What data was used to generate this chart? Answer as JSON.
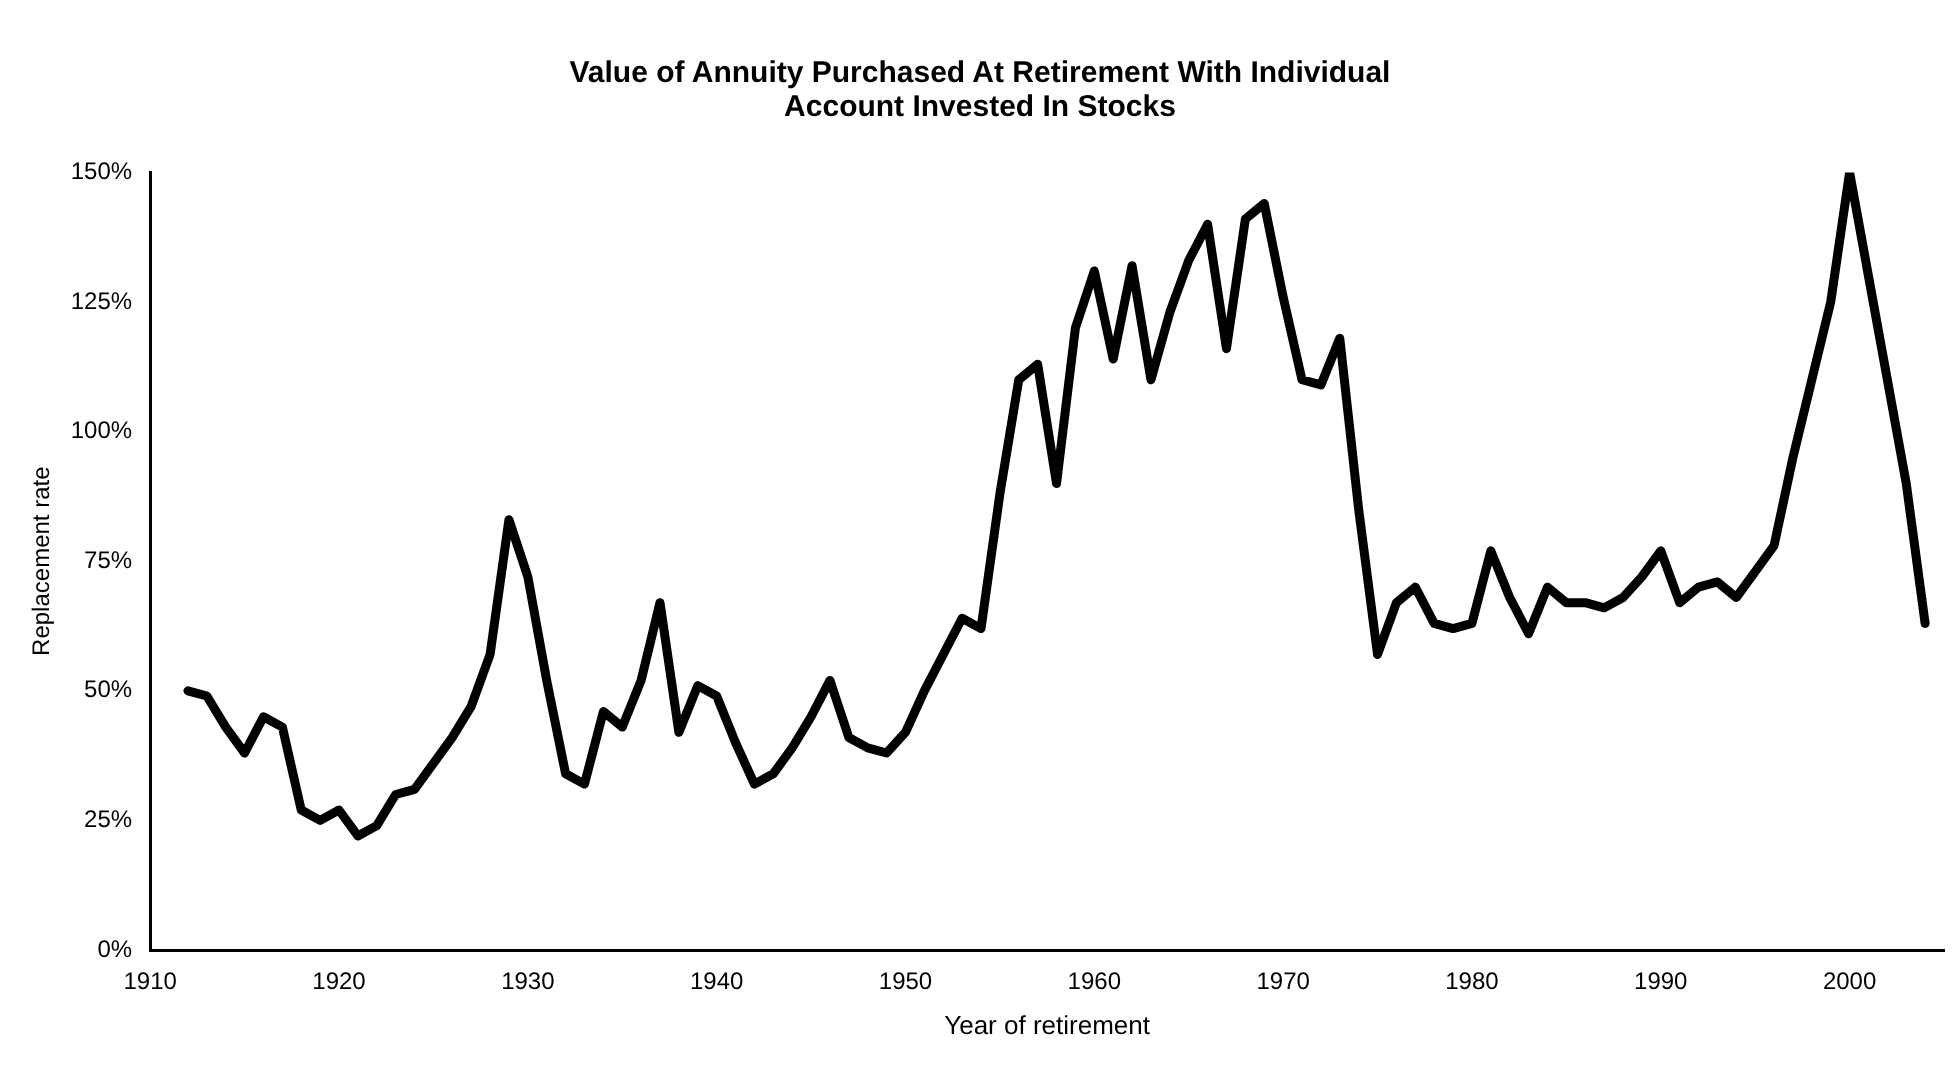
{
  "chart_data": {
    "type": "line",
    "title": "Value of Annuity Purchased At Retirement With Individual Account Invested In Stocks",
    "xlabel": "Year of retirement",
    "ylabel": "Replacement rate",
    "x": [
      1912,
      1913,
      1914,
      1915,
      1916,
      1917,
      1918,
      1919,
      1920,
      1921,
      1922,
      1923,
      1924,
      1925,
      1926,
      1927,
      1928,
      1929,
      1930,
      1931,
      1932,
      1933,
      1934,
      1935,
      1936,
      1937,
      1938,
      1939,
      1940,
      1941,
      1942,
      1943,
      1944,
      1945,
      1946,
      1947,
      1948,
      1949,
      1950,
      1951,
      1952,
      1953,
      1954,
      1955,
      1956,
      1957,
      1958,
      1959,
      1960,
      1961,
      1962,
      1963,
      1964,
      1965,
      1966,
      1967,
      1968,
      1969,
      1970,
      1971,
      1972,
      1973,
      1974,
      1975,
      1976,
      1977,
      1978,
      1979,
      1980,
      1981,
      1982,
      1983,
      1984,
      1985,
      1986,
      1987,
      1988,
      1989,
      1990,
      1991,
      1992,
      1993,
      1994,
      1995,
      1996,
      1997,
      1998,
      1999,
      2000,
      2001,
      2002,
      2003,
      2004
    ],
    "series": [
      {
        "color": "#000000",
        "values": [
          50,
          49,
          43,
          38,
          45,
          43,
          27,
          25,
          27,
          22,
          24,
          30,
          31,
          36,
          41,
          47,
          57,
          83,
          72,
          52,
          34,
          32,
          46,
          43,
          52,
          67,
          42,
          51,
          49,
          40,
          32,
          34,
          39,
          45,
          52,
          41,
          39,
          38,
          42,
          50,
          57,
          64,
          62,
          88,
          110,
          113,
          90,
          120,
          131,
          114,
          132,
          110,
          123,
          133,
          140,
          116,
          141,
          144,
          126,
          110,
          109,
          118,
          85,
          57,
          67,
          70,
          63,
          62,
          63,
          77,
          68,
          61,
          70,
          67,
          67,
          66,
          68,
          72,
          77,
          67,
          70,
          71,
          68,
          73,
          78,
          95,
          110,
          125,
          150,
          130,
          110,
          90,
          63
        ]
      }
    ],
    "xlim": [
      1910,
      2005
    ],
    "xticks": [
      1910,
      1920,
      1930,
      1940,
      1950,
      1960,
      1970,
      1980,
      1990,
      2000
    ],
    "ylim": [
      0,
      150
    ],
    "yticks": [
      {
        "value": 0,
        "label": "0%"
      },
      {
        "value": 25,
        "label": "25%"
      },
      {
        "value": 50,
        "label": "50%"
      },
      {
        "value": 75,
        "label": "75%"
      },
      {
        "value": 100,
        "label": "100%"
      },
      {
        "value": 125,
        "label": "125%"
      },
      {
        "value": 150,
        "label": "150%"
      }
    ],
    "grid": false,
    "legend": false,
    "marker": "none",
    "line_style": "solid"
  }
}
